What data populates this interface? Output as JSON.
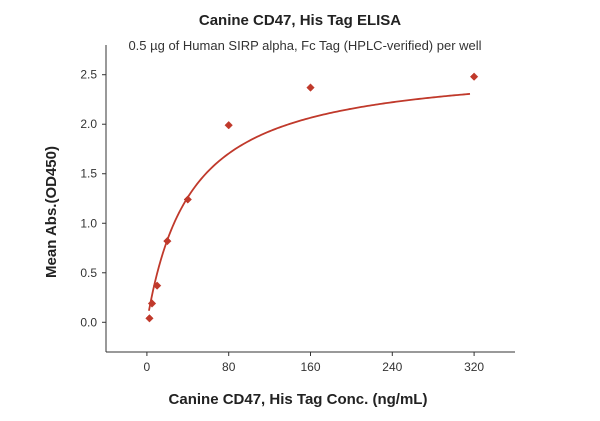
{
  "chart_data": {
    "type": "scatter",
    "title": "Canine CD47, His Tag ELISA",
    "subtitle": "0.5 µg of Human SIRP alpha, Fc Tag (HPLC-verified) per well",
    "xlabel": "Canine CD47, His Tag Conc. (ng/mL)",
    "ylabel": "Mean Abs.(OD450)",
    "xlim": [
      -40,
      360
    ],
    "ylim": [
      -0.3,
      2.8
    ],
    "xticks": [
      0,
      80,
      160,
      240,
      320
    ],
    "yticks": [
      0.0,
      0.5,
      1.0,
      1.5,
      2.0,
      2.5
    ],
    "xtick_labels": [
      "0",
      "80",
      "160",
      "240",
      "320"
    ],
    "ytick_labels": [
      "0.0",
      "0.5",
      "1.0",
      "1.5",
      "2.0",
      "2.5"
    ],
    "grid": false,
    "series": [
      {
        "marker": "diamond",
        "color": "#c0392b",
        "x": [
          2.5,
          5,
          10,
          20,
          40,
          80,
          160,
          320
        ],
        "y": [
          0.04,
          0.19,
          0.37,
          0.82,
          1.24,
          1.99,
          2.37,
          2.48
        ],
        "fit_line": true
      }
    ]
  }
}
